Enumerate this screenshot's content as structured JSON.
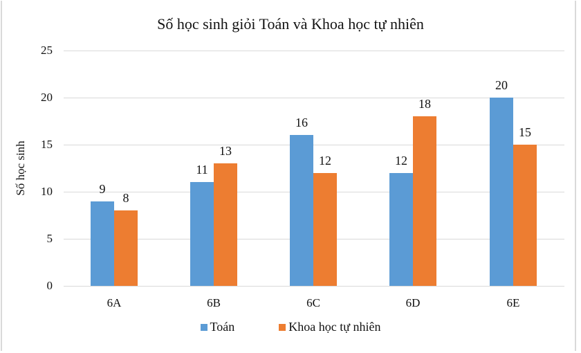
{
  "chart_data": {
    "type": "bar",
    "title": "Số học sinh giỏi Toán và Khoa học tự nhiên",
    "xlabel": "",
    "ylabel": "Số học sinh",
    "categories": [
      "6A",
      "6B",
      "6C",
      "6D",
      "6E"
    ],
    "series": [
      {
        "name": "Toán",
        "color": "#5B9BD5",
        "values": [
          9,
          11,
          16,
          12,
          20
        ]
      },
      {
        "name": "Khoa học tự nhiên",
        "color": "#ED7D31",
        "values": [
          8,
          13,
          12,
          18,
          15
        ]
      }
    ],
    "ylim": [
      0,
      25
    ],
    "yticks": [
      "0",
      "5",
      "10",
      "15",
      "20",
      "25"
    ],
    "grid": true,
    "legend_position": "bottom",
    "data_labels": true
  }
}
